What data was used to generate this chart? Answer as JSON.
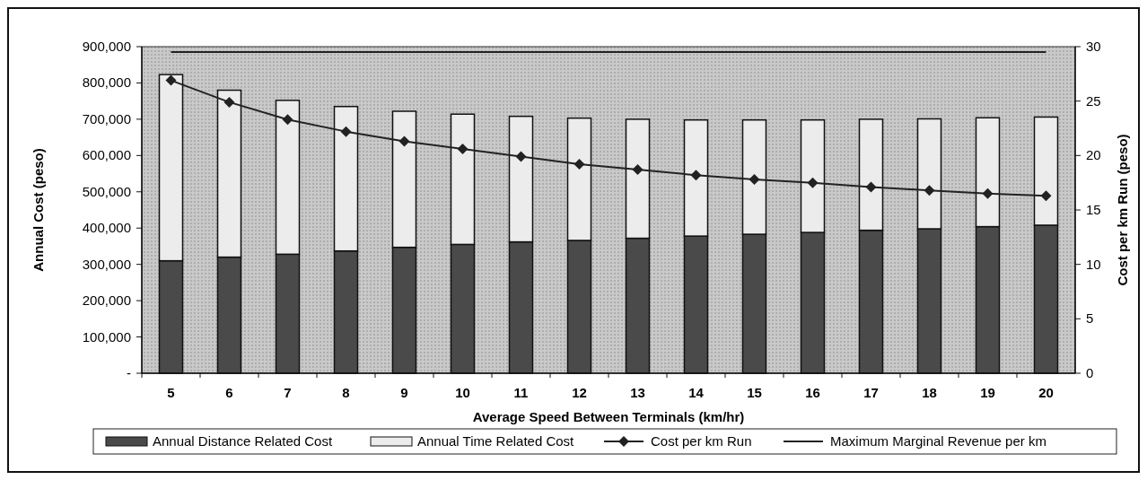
{
  "chart_data": {
    "type": "bar",
    "stacked": true,
    "xlabel": "Average Speed Between Terminals (km/hr)",
    "ylabel": "Annual Cost (peso)",
    "y2label": "Cost per km Run (peso)",
    "categories": [
      "5",
      "6",
      "7",
      "8",
      "9",
      "10",
      "11",
      "12",
      "13",
      "14",
      "15",
      "16",
      "17",
      "18",
      "19",
      "20"
    ],
    "series": [
      {
        "name": "Annual Distance Related Cost",
        "color": "#4a4a4a",
        "values": [
          310000,
          320000,
          328000,
          337000,
          347000,
          355000,
          362000,
          366000,
          372000,
          378000,
          383000,
          388000,
          394000,
          398000,
          404000,
          408000
        ]
      },
      {
        "name": "Annual Time Related Cost",
        "color": "#ececec",
        "values": [
          513000,
          460000,
          424000,
          398000,
          375000,
          359000,
          346000,
          337000,
          328000,
          320000,
          315000,
          310000,
          306000,
          303000,
          300000,
          298000
        ]
      },
      {
        "name": "Cost per km Run",
        "type": "line",
        "axis": "y2",
        "marker": "diamond",
        "color": "#222222",
        "values": [
          26.9,
          24.9,
          23.3,
          22.2,
          21.3,
          20.6,
          19.9,
          19.2,
          18.7,
          18.2,
          17.8,
          17.5,
          17.1,
          16.8,
          16.5,
          16.3
        ]
      },
      {
        "name": "Maximum Marginal Revenue per km",
        "type": "line",
        "axis": "y2",
        "marker": "none",
        "color": "#222222",
        "values": [
          29.5,
          29.5,
          29.5,
          29.5,
          29.5,
          29.5,
          29.5,
          29.5,
          29.5,
          29.5,
          29.5,
          29.5,
          29.5,
          29.5,
          29.5,
          29.5
        ]
      }
    ],
    "ylim": [
      0,
      900000
    ],
    "yticks": [
      {
        "value": 0,
        "label": "-"
      },
      {
        "value": 100000,
        "label": "100,000"
      },
      {
        "value": 200000,
        "label": "200,000"
      },
      {
        "value": 300000,
        "label": "300,000"
      },
      {
        "value": 400000,
        "label": "400,000"
      },
      {
        "value": 500000,
        "label": "500,000"
      },
      {
        "value": 600000,
        "label": "600,000"
      },
      {
        "value": 700000,
        "label": "700,000"
      },
      {
        "value": 800000,
        "label": "800,000"
      },
      {
        "value": 900000,
        "label": "900,000"
      }
    ],
    "y2lim": [
      0,
      30
    ],
    "y2ticks": [
      0,
      5,
      10,
      15,
      20,
      25,
      30
    ],
    "legend": "bottom"
  }
}
